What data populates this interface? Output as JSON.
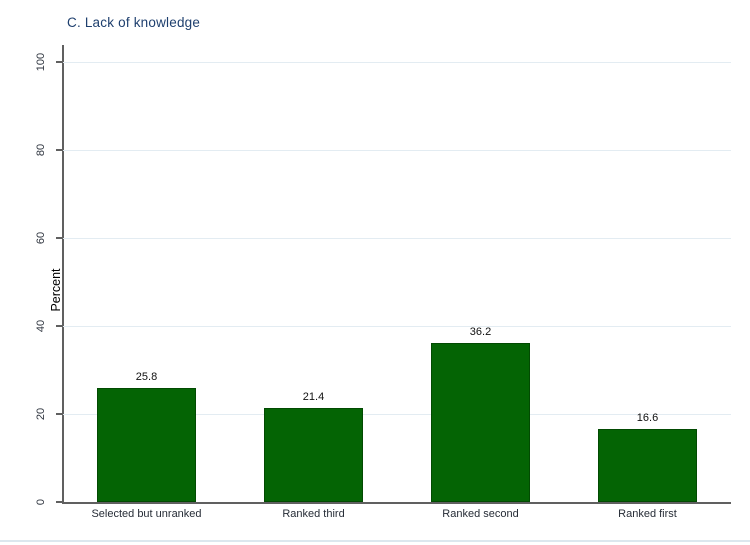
{
  "title": "C. Lack of knowledge",
  "chart_data": {
    "type": "bar",
    "title": "C. Lack of knowledge",
    "categories": [
      "Selected but unranked",
      "Ranked third",
      "Ranked second",
      "Ranked first"
    ],
    "values": [
      25.8,
      21.4,
      36.2,
      16.6
    ],
    "value_labels": [
      "25.8",
      "21.4",
      "36.2",
      "16.6"
    ],
    "xlabel": "",
    "ylabel": "Percent",
    "ylim": [
      0,
      100
    ],
    "yticks": [
      0,
      20,
      40,
      60,
      80,
      100
    ],
    "grid": "horizontal gridlines at ticks above 0, none at 0",
    "legend_position": "none",
    "colors": {
      "bar_fill": "#046404",
      "bar_border": "#024a02",
      "title_text": "#1e3f6e",
      "gridline": "#e3ecf2",
      "axis_line": "#606060",
      "tick_label_text": "#303640",
      "category_label_text": "#262c36",
      "value_label_text": "#111111",
      "ylabel_text": "#000000",
      "bottom_edge_line": "#dce7ee"
    }
  }
}
